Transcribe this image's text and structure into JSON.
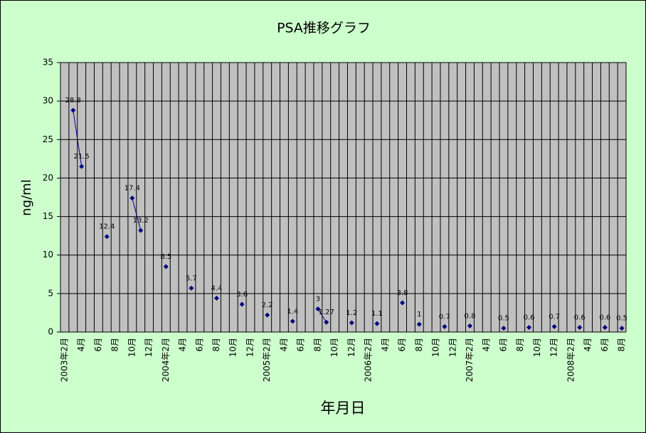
{
  "chart_data": {
    "type": "line",
    "title": "PSA推移グラフ",
    "y_label": "ng/ml",
    "x_label": "年月日",
    "categories": [
      "2003年2月",
      null,
      "4月",
      null,
      "6月",
      null,
      "8月",
      null,
      "10月",
      null,
      "12月",
      null,
      "2004年2月",
      null,
      "4月",
      null,
      "6月",
      null,
      "8月",
      null,
      "10月",
      null,
      "12月",
      null,
      "2005年2月",
      null,
      "4月",
      null,
      "6月",
      null,
      "8月",
      null,
      "10月",
      null,
      "12月",
      null,
      "2006年2月",
      null,
      "4月",
      null,
      "6月",
      null,
      "8月",
      null,
      "10月",
      null,
      "12月",
      null,
      "2007年2月",
      null,
      "4月",
      null,
      "6月",
      null,
      "8月",
      null,
      "10月",
      null,
      "12月",
      null,
      "2008年2月",
      null,
      "4月",
      null,
      "6月",
      null,
      "8月"
    ],
    "values": [
      null,
      28.8,
      21.5,
      null,
      null,
      12.4,
      null,
      null,
      17.4,
      13.2,
      null,
      null,
      8.5,
      null,
      null,
      5.7,
      null,
      null,
      4.4,
      null,
      null,
      3.6,
      null,
      null,
      2.2,
      null,
      null,
      1.4,
      null,
      null,
      3,
      1.27,
      null,
      null,
      1.2,
      null,
      null,
      1.1,
      null,
      null,
      3.8,
      null,
      1,
      null,
      null,
      0.7,
      null,
      null,
      0.8,
      null,
      null,
      null,
      0.5,
      null,
      null,
      0.6,
      null,
      null,
      0.7,
      null,
      null,
      0.6,
      null,
      null,
      0.6,
      null,
      0.5
    ],
    "color": "#000080",
    "ylim": [
      0,
      35
    ],
    "yticks": [
      0,
      5,
      10,
      15,
      20,
      25,
      30,
      35
    ],
    "grid": true
  }
}
